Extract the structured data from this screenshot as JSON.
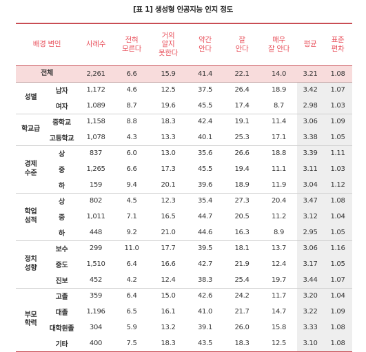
{
  "caption": "[표 1] 생성형 인공지능 인지 정도",
  "headers": [
    "배경 변인",
    "사례수",
    "전혀\n모른다",
    "거의\n알지\n못한다",
    "약간\n안다",
    "잘\n안다",
    "매우\n잘 안다",
    "평균",
    "표준\n편차"
  ],
  "total": {
    "label": "전체",
    "values": [
      "2,261",
      "6.6",
      "15.9",
      "41.4",
      "22.1",
      "14.0",
      "3.21",
      "1.08"
    ]
  },
  "groups": [
    {
      "name": "성별",
      "rows": [
        {
          "label": "남자",
          "values": [
            "1,172",
            "4.6",
            "12.5",
            "37.5",
            "26.4",
            "18.9",
            "3.42",
            "1.07"
          ]
        },
        {
          "label": "여자",
          "values": [
            "1,089",
            "8.7",
            "19.6",
            "45.5",
            "17.4",
            "8.7",
            "2.98",
            "1.03"
          ]
        }
      ]
    },
    {
      "name": "학교급",
      "rows": [
        {
          "label": "중학교",
          "values": [
            "1,158",
            "8.8",
            "18.3",
            "42.4",
            "19.1",
            "11.4",
            "3.06",
            "1.09"
          ]
        },
        {
          "label": "고등학교",
          "values": [
            "1,078",
            "4.3",
            "13.3",
            "40.1",
            "25.3",
            "17.1",
            "3.38",
            "1.05"
          ]
        }
      ]
    },
    {
      "name": "경제\n수준",
      "rows": [
        {
          "label": "상",
          "values": [
            "837",
            "6.0",
            "13.0",
            "35.6",
            "26.6",
            "18.8",
            "3.39",
            "1.11"
          ]
        },
        {
          "label": "중",
          "values": [
            "1,265",
            "6.6",
            "17.3",
            "45.5",
            "19.4",
            "11.1",
            "3.11",
            "1.03"
          ]
        },
        {
          "label": "하",
          "values": [
            "159",
            "9.4",
            "20.1",
            "39.6",
            "18.9",
            "11.9",
            "3.04",
            "1.12"
          ]
        }
      ]
    },
    {
      "name": "학업\n성적",
      "rows": [
        {
          "label": "상",
          "values": [
            "802",
            "4.5",
            "12.3",
            "35.4",
            "27.3",
            "20.4",
            "3.47",
            "1.08"
          ]
        },
        {
          "label": "중",
          "values": [
            "1,011",
            "7.1",
            "16.5",
            "44.7",
            "20.5",
            "11.2",
            "3.12",
            "1.04"
          ]
        },
        {
          "label": "하",
          "values": [
            "448",
            "9.2",
            "21.0",
            "44.6",
            "16.3",
            "8.9",
            "2.95",
            "1.05"
          ]
        }
      ]
    },
    {
      "name": "정치\n성향",
      "rows": [
        {
          "label": "보수",
          "values": [
            "299",
            "11.0",
            "17.7",
            "39.5",
            "18.1",
            "13.7",
            "3.06",
            "1.16"
          ]
        },
        {
          "label": "중도",
          "values": [
            "1,510",
            "6.4",
            "16.6",
            "42.7",
            "21.9",
            "12.4",
            "3.17",
            "1.05"
          ]
        },
        {
          "label": "진보",
          "values": [
            "452",
            "4.2",
            "12.4",
            "38.3",
            "25.4",
            "19.7",
            "3.44",
            "1.07"
          ]
        }
      ]
    },
    {
      "name": "부모\n학력",
      "rows": [
        {
          "label": "고졸",
          "values": [
            "359",
            "6.4",
            "15.0",
            "42.6",
            "24.2",
            "11.7",
            "3.20",
            "1.04"
          ]
        },
        {
          "label": "대졸",
          "values": [
            "1,196",
            "6.5",
            "16.1",
            "41.0",
            "21.7",
            "14.7",
            "3.22",
            "1.09"
          ]
        },
        {
          "label": "대학원졸",
          "values": [
            "304",
            "5.9",
            "13.2",
            "39.1",
            "26.0",
            "15.8",
            "3.33",
            "1.08"
          ]
        },
        {
          "label": "기타",
          "values": [
            "400",
            "7.5",
            "18.3",
            "43.5",
            "18.3",
            "12.5",
            "3.10",
            "1.08"
          ]
        }
      ]
    }
  ]
}
